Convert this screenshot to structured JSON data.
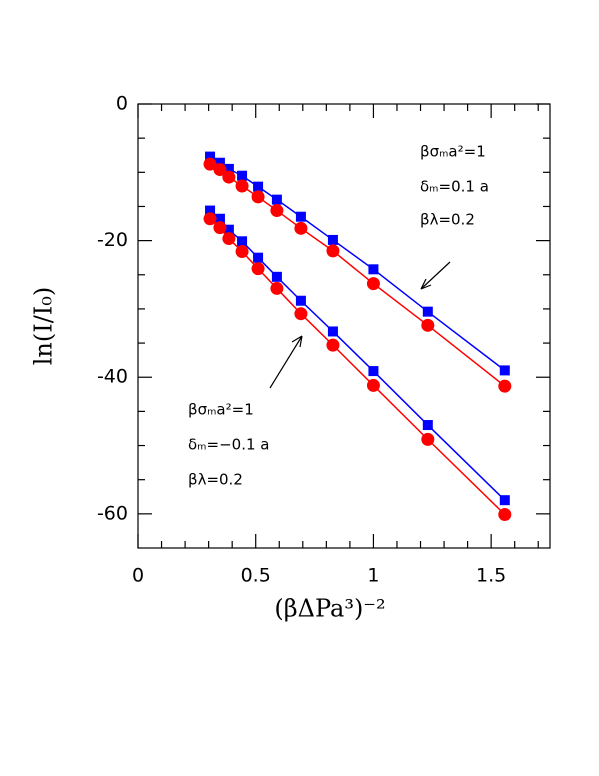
{
  "chart_data": {
    "type": "line",
    "xlabel": "(βΔPa³)⁻²",
    "ylabel": "ln(I/I₀)",
    "xlim": [
      0,
      1.75
    ],
    "ylim": [
      -65,
      0
    ],
    "xticks": [
      0,
      0.5,
      1,
      1.5
    ],
    "yticks": [
      0,
      -20,
      -40,
      -60
    ],
    "xminorticks": [
      0.1,
      0.2,
      0.3,
      0.4,
      0.6,
      0.7,
      0.8,
      0.9,
      1.1,
      1.2,
      1.3,
      1.4,
      1.6,
      1.7
    ],
    "yminorticks": [
      -5,
      -10,
      -15,
      -25,
      -30,
      -35,
      -45,
      -50,
      -55
    ],
    "x": [
      0.306,
      0.348,
      0.386,
      0.442,
      0.51,
      0.59,
      0.692,
      0.828,
      1.0,
      1.231,
      1.558
    ],
    "series": [
      {
        "color": "#0000ff",
        "marker": "square",
        "values": [
          -7.7,
          -8.6,
          -9.5,
          -10.5,
          -12.1,
          -14.0,
          -16.5,
          -19.9,
          -24.2,
          -30.4,
          -39.0
        ]
      },
      {
        "color": "#ff0000",
        "marker": "circle",
        "values": [
          -8.8,
          -9.6,
          -10.7,
          -12.0,
          -13.6,
          -15.6,
          -18.2,
          -21.5,
          -26.3,
          -32.4,
          -41.3
        ]
      },
      {
        "color": "#0000ff",
        "marker": "square",
        "values": [
          -15.6,
          -16.8,
          -18.4,
          -20.1,
          -22.5,
          -25.3,
          -28.8,
          -33.3,
          -39.1,
          -47.0,
          -58.0
        ]
      },
      {
        "color": "#ff0000",
        "marker": "circle",
        "values": [
          -16.8,
          -18.1,
          -19.7,
          -21.6,
          -24.1,
          -27.0,
          -30.7,
          -35.3,
          -41.2,
          -49.1,
          -60.1
        ]
      }
    ],
    "annotations": [
      [
        "βσₘa²=1",
        "δₘ=0.1 a",
        "βλ=0.2"
      ],
      [
        "βσₘa²=1",
        "δₘ=−0.1 a",
        "βλ=0.2"
      ]
    ]
  }
}
